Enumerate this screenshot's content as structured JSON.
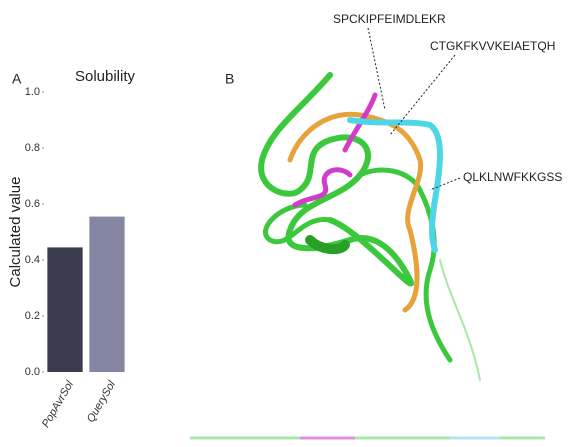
{
  "chart_data": {
    "type": "bar",
    "title": "Solubility",
    "y_label": "Calculated value",
    "categories": [
      "PopAvrSol",
      "QuerySol"
    ],
    "values": [
      0.445,
      0.555
    ],
    "colors": [
      "#3b3d4f",
      "#8486a4"
    ],
    "ylim": [
      0,
      1.0
    ],
    "yticks": [
      {
        "value": 0,
        "label": "0.0"
      },
      0.2,
      0.4,
      0.6,
      0.8,
      {
        "value": 1.0,
        "label": "1.0"
      }
    ],
    "grid": false
  },
  "panel_labels": [
    "A",
    "B"
  ],
  "annotations": [
    "SPCKIPFEIMDLEKR",
    "CTGKFKVVKEIAETQH",
    "QLKLNWFKKGSS"
  ]
}
